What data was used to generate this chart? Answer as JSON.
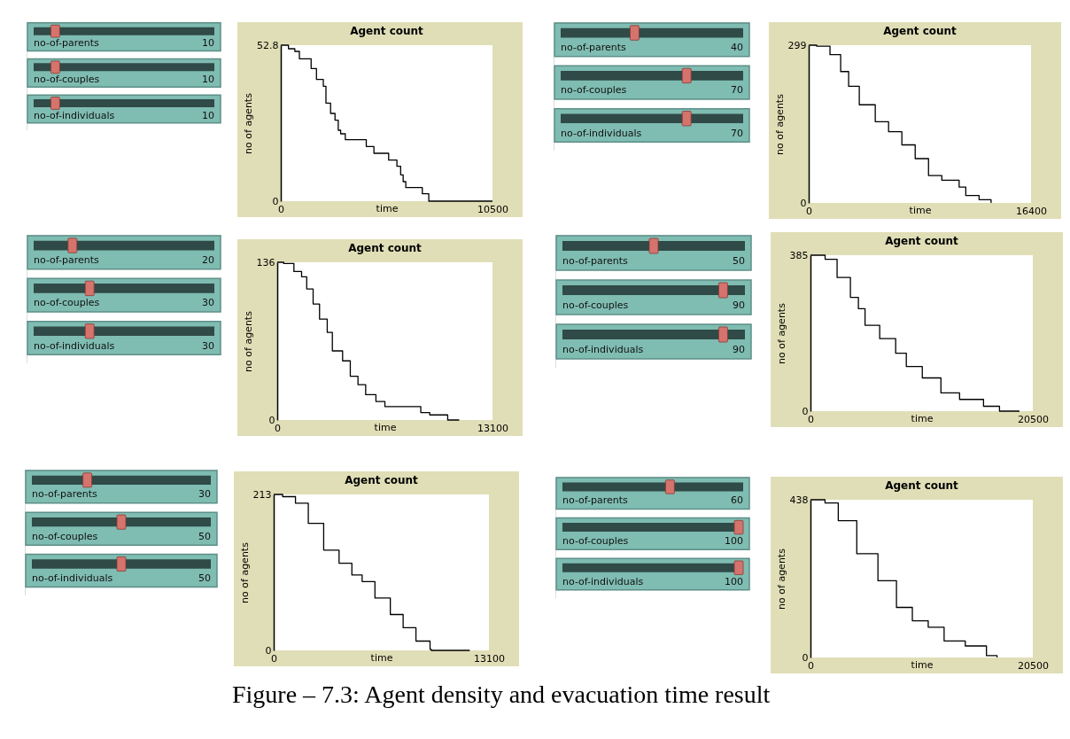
{
  "chart_data": [
    {
      "type": "other",
      "categories": [
        "no-of-parents",
        "no-of-couples",
        "no-of-individuals"
      ],
      "values": [
        10,
        10,
        10
      ],
      "data_labels": true
    },
    {
      "type": "step",
      "title": "Agent count",
      "xlabel": "time",
      "ylabel": "no of agents",
      "xlim": [
        0,
        10500
      ],
      "xticks": [
        0,
        10500
      ],
      "ylim": [
        0,
        52.8
      ],
      "yticks": [
        0,
        52.8
      ],
      "x": [
        0,
        380,
        696,
        923,
        1505,
        1770,
        2110,
        2240,
        2470,
        2690,
        2850,
        2970,
        3200,
        4240,
        4620,
        5350,
        5760,
        5945,
        6070,
        6200,
        7020,
        7340,
        10500
      ],
      "series": [
        {
          "color": "#000000",
          "values": [
            52.8,
            51.6,
            50.7,
            48.2,
            44.9,
            41.2,
            38.9,
            33.2,
            29.7,
            27.4,
            24,
            22.8,
            20.8,
            18.5,
            16.2,
            13.9,
            11.8,
            8.9,
            6.6,
            4.6,
            2.5,
            0,
            0
          ]
        }
      ]
    },
    {
      "type": "other",
      "categories": [
        "no-of-parents",
        "no-of-couples",
        "no-of-individuals"
      ],
      "values": [
        40,
        70,
        70
      ],
      "data_labels": true
    },
    {
      "type": "step",
      "title": "Agent count",
      "xlabel": "time",
      "ylabel": "no of agents",
      "xlim": [
        0,
        16400
      ],
      "xticks": [
        0,
        16400
      ],
      "ylim": [
        0,
        299
      ],
      "yticks": [
        0,
        299
      ],
      "x": [
        0,
        589,
        1571,
        2357,
        2946,
        3732,
        4910,
        5892,
        6874,
        7856,
        8838,
        9820,
        11097,
        11588,
        12570,
        13454
      ],
      "series": [
        {
          "color": "#000000",
          "values": [
            299,
            297,
            281,
            249,
            221,
            186,
            154,
            135,
            110,
            84,
            52,
            43,
            30,
            14,
            6,
            0
          ]
        }
      ]
    },
    {
      "type": "other",
      "categories": [
        "no-of-parents",
        "no-of-couples",
        "no-of-individuals"
      ],
      "values": [
        20,
        30,
        30
      ],
      "data_labels": true
    },
    {
      "type": "step",
      "title": "Agent count",
      "xlabel": "time",
      "ylabel": "no of agents",
      "xlim": [
        0,
        13100
      ],
      "xticks": [
        0,
        13100
      ],
      "ylim": [
        0,
        136
      ],
      "yticks": [
        0,
        136
      ],
      "x": [
        0,
        390,
        1014,
        1482,
        1794,
        2184,
        2574,
        3042,
        3354,
        3978,
        4446,
        4914,
        5382,
        6006,
        6552,
        8658,
        8736,
        9282,
        10218,
        10374,
        11076
      ],
      "series": [
        {
          "color": "#000000",
          "values": [
            136,
            135,
            128,
            123.5,
            113,
            100,
            87,
            75.6,
            59.6,
            51,
            37.8,
            30.5,
            21.8,
            16,
            11.6,
            11.6,
            6.4,
            4.4,
            4.4,
            0,
            0
          ]
        }
      ]
    },
    {
      "type": "other",
      "categories": [
        "no-of-parents",
        "no-of-couples",
        "no-of-individuals"
      ],
      "values": [
        50,
        90,
        90
      ],
      "data_labels": true
    },
    {
      "type": "step",
      "title": "Agent count",
      "xlabel": "time",
      "ylabel": "no of agents",
      "xlim": [
        0,
        20500
      ],
      "xticks": [
        0,
        20500
      ],
      "ylim": [
        0,
        385
      ],
      "yticks": [
        0,
        385
      ],
      "x": [
        0,
        1350,
        2455,
        3683,
        4419,
        5032,
        6383,
        7856,
        8838,
        10311,
        12029,
        13748,
        15957,
        17430,
        19271
      ],
      "series": [
        {
          "color": "#000000",
          "values": [
            385,
            375,
            330,
            281,
            253,
            212,
            179,
            143,
            110,
            82,
            45,
            29,
            12,
            0,
            0
          ]
        }
      ]
    },
    {
      "type": "other",
      "categories": [
        "no-of-parents",
        "no-of-couples",
        "no-of-individuals"
      ],
      "values": [
        30,
        50,
        50
      ],
      "data_labels": true
    },
    {
      "type": "step",
      "title": "Agent count",
      "xlabel": "time",
      "ylabel": "no of agents",
      "xlim": [
        0,
        13100
      ],
      "xticks": [
        0,
        13100
      ],
      "ylim": [
        0,
        213
      ],
      "yticks": [
        0,
        213
      ],
      "x": [
        0,
        546,
        1326,
        2106,
        3042,
        3978,
        4758,
        5382,
        6162,
        7098,
        7878,
        8658,
        9516,
        9594,
        11934
      ],
      "series": [
        {
          "color": "#000000",
          "values": [
            213,
            210,
            201,
            173.5,
            137,
            119,
            103,
            94,
            71.5,
            49,
            31,
            12.7,
            1.4,
            0,
            0
          ]
        }
      ]
    },
    {
      "type": "other",
      "categories": [
        "no-of-parents",
        "no-of-couples",
        "no-of-individuals"
      ],
      "values": [
        60,
        100,
        100
      ],
      "data_labels": true
    },
    {
      "type": "step",
      "title": "Agent count",
      "xlabel": "time",
      "ylabel": "no of agents",
      "xlim": [
        0,
        20500
      ],
      "xticks": [
        0,
        20500
      ],
      "ylim": [
        0,
        438
      ],
      "yticks": [
        0,
        438
      ],
      "x": [
        0,
        1342,
        2562,
        4270,
        6222,
        7930,
        9394,
        10858,
        12322,
        14274,
        16226,
        17202
      ],
      "series": [
        {
          "color": "#000000",
          "values": [
            438,
            429,
            380,
            288,
            213,
            139,
            102,
            84,
            46,
            32,
            5,
            0
          ]
        }
      ]
    },
    {
      "type": "other",
      "annotations": [
        "Figure – 7.3: Agent density and evacuation time result"
      ]
    }
  ]
}
